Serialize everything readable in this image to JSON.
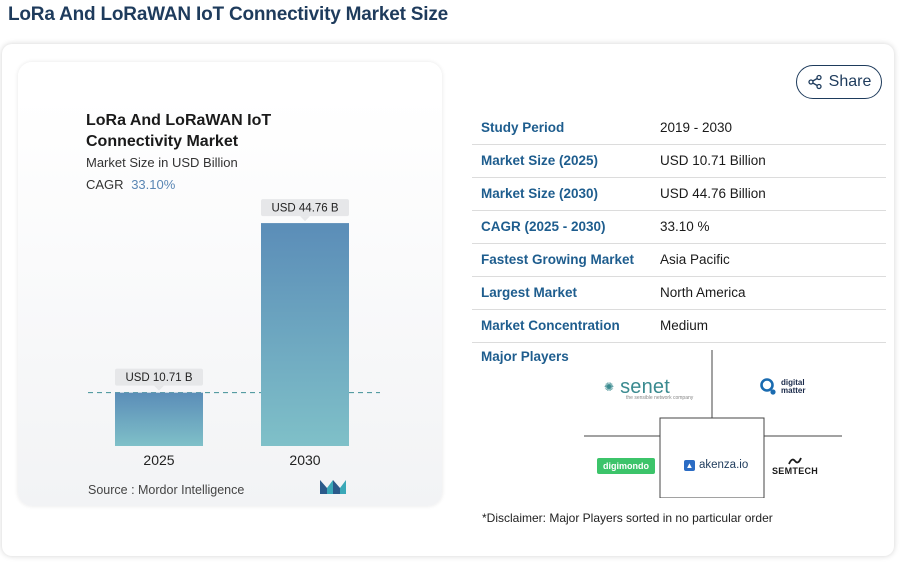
{
  "page": {
    "title": "LoRa And LoRaWAN IoT Connectivity Market Size"
  },
  "chart_card": {
    "title": "LoRa And LoRaWAN IoT Connectivity Market",
    "subtitle": "Market Size in USD Billion",
    "cagr_label": "CAGR",
    "cagr_value": "33.10%",
    "source": "Source :  Mordor Intelligence"
  },
  "chart_data": {
    "type": "bar",
    "title": "LoRa And LoRaWAN IoT Connectivity Market",
    "ylabel": "Market Size in USD Billion",
    "categories": [
      "2025",
      "2030"
    ],
    "values": [
      10.71,
      44.76
    ],
    "value_labels": [
      "USD 10.71 B",
      "USD 44.76 B"
    ],
    "ylim": [
      0,
      50
    ],
    "grid": false,
    "reference_line": 10.71,
    "colors": {
      "bar_top": "#5b8db8",
      "bar_bottom": "#7fc0c8",
      "label_bg": "#e6e7e9"
    }
  },
  "share": {
    "label": "Share"
  },
  "info_table": [
    {
      "label": "Study Period",
      "value": "2019 - 2030"
    },
    {
      "label": "Market Size (2025)",
      "value": "USD 10.71 Billion"
    },
    {
      "label": "Market Size (2030)",
      "value": "USD 44.76 Billion"
    },
    {
      "label": "CAGR (2025 - 2030)",
      "value": "33.10 %"
    },
    {
      "label": "Fastest Growing Market",
      "value": "Asia Pacific"
    },
    {
      "label": "Largest Market",
      "value": "North America"
    },
    {
      "label": "Market Concentration",
      "value": "Medium"
    }
  ],
  "major_players": {
    "label": "Major Players",
    "logos": {
      "senet": "senet",
      "senet_sub": "the sensible network company",
      "digital_matter": [
        "digital",
        "matter"
      ],
      "digimondo": "digimondo",
      "akenza": "akenza.io",
      "semtech": "SEMTECH"
    }
  },
  "disclaimer": "*Disclaimer: Major Players sorted in no particular order",
  "colors": {
    "accent": "#1e3b5c",
    "label_blue": "#1e5d8e",
    "cagr_blue": "#5a86b4"
  }
}
